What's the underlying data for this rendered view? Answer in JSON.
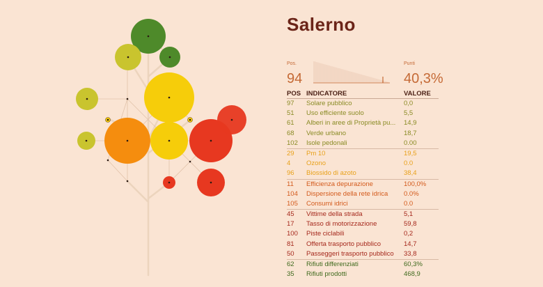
{
  "city": "Salerno",
  "summary": {
    "pos_label": "Pos.",
    "pos_value": "94",
    "points_label": "Punti",
    "points_value": "40,3%"
  },
  "table": {
    "headers": {
      "pos": "POS",
      "indicator": "INDICATORE",
      "value": "VALORE"
    },
    "groups": [
      {
        "color": "#8a8b24",
        "rows": [
          {
            "pos": "97",
            "name": "Solare pubblico",
            "value": "0,0"
          },
          {
            "pos": "51",
            "name": "Uso efficiente suolo",
            "value": "5,5"
          },
          {
            "pos": "61",
            "name": "Alberi in aree di Proprietà pu...",
            "value": "14,9"
          },
          {
            "pos": "68",
            "name": "Verde urbano",
            "value": "18,7"
          },
          {
            "pos": "102",
            "name": "Isole pedonali",
            "value": "0.00"
          }
        ]
      },
      {
        "color": "#e8a11a",
        "rows": [
          {
            "pos": "29",
            "name": "Pm 10",
            "value": "19,5"
          },
          {
            "pos": "4",
            "name": "Ozono",
            "value": "0.0"
          },
          {
            "pos": "96",
            "name": "Biossido di azoto",
            "value": "38,4"
          }
        ]
      },
      {
        "color": "#d35a1c",
        "rows": [
          {
            "pos": "11",
            "name": "Efficienza depurazione",
            "value": "100,0%"
          },
          {
            "pos": "104",
            "name": "Dispersione della rete idrica",
            "value": "0.0%"
          },
          {
            "pos": "105",
            "name": "Consumi idrici",
            "value": "0.0"
          }
        ]
      },
      {
        "color": "#a5281c",
        "rows": [
          {
            "pos": "45",
            "name": "Vittime della strada",
            "value": "5,1"
          },
          {
            "pos": "17",
            "name": "Tasso di motorizzazione",
            "value": "59,8"
          },
          {
            "pos": "100",
            "name": "Piste ciclabili",
            "value": "0,2"
          },
          {
            "pos": "81",
            "name": "Offerta trasporto pubblico",
            "value": "14,7"
          },
          {
            "pos": "50",
            "name": "Passeggeri trasporto pubblico",
            "value": "33,8"
          }
        ]
      },
      {
        "color": "#3f6a1d",
        "rows": [
          {
            "pos": "62",
            "name": "Rifiuti differenziati",
            "value": "60,3%"
          },
          {
            "pos": "35",
            "name": "Rifiuti prodotti",
            "value": "468,9"
          }
        ]
      }
    ]
  },
  "colors": {
    "background": "#fae4d3",
    "dark_green": "#4e8a2a",
    "olive": "#c9c42e",
    "yellow": "#f6cd0a",
    "orange": "#f58d0e",
    "red": "#e73820",
    "trunk": "#ecd4bd"
  }
}
